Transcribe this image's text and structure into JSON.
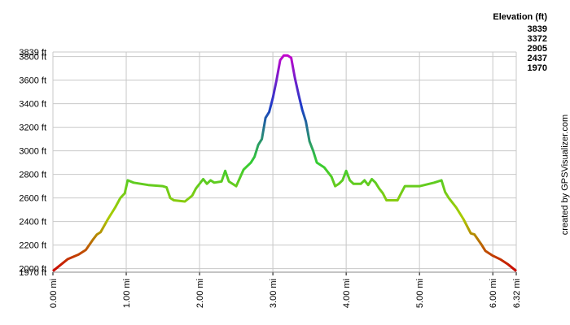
{
  "chart_data": {
    "type": "line",
    "credit": "created by GPSVisualizer.com",
    "legend_title": "Elevation (ft)",
    "color_scale": [
      {
        "value": 3839,
        "color": "#cc00cc"
      },
      {
        "value": 3372,
        "color": "#1a3cc8"
      },
      {
        "value": 2905,
        "color": "#33cc33"
      },
      {
        "value": 2437,
        "color": "#aacc00"
      },
      {
        "value": 1970,
        "color": "#cc0000"
      }
    ],
    "grid": true,
    "xlim": [
      0,
      6.32
    ],
    "ylim": [
      1970,
      3839
    ],
    "xticks": [
      {
        "value": 0,
        "label": "0.00 mi"
      },
      {
        "value": 1,
        "label": "1.00 mi"
      },
      {
        "value": 2,
        "label": "2.00 mi"
      },
      {
        "value": 3,
        "label": "3.00 mi"
      },
      {
        "value": 4,
        "label": "4.00 mi"
      },
      {
        "value": 5,
        "label": "5.00 mi"
      },
      {
        "value": 6,
        "label": "6.00 mi"
      },
      {
        "value": 6.32,
        "label": "6.32 mi"
      }
    ],
    "yticks": [
      {
        "value": 1970,
        "label": "1970 ft"
      },
      {
        "value": 2000,
        "label": "2000 ft"
      },
      {
        "value": 2200,
        "label": "2200 ft"
      },
      {
        "value": 2400,
        "label": "2400 ft"
      },
      {
        "value": 2600,
        "label": "2600 ft"
      },
      {
        "value": 2800,
        "label": "2800 ft"
      },
      {
        "value": 3000,
        "label": "3000 ft"
      },
      {
        "value": 3200,
        "label": "3200 ft"
      },
      {
        "value": 3400,
        "label": "3400 ft"
      },
      {
        "value": 3600,
        "label": "3600 ft"
      },
      {
        "value": 3800,
        "label": "3800 ft"
      },
      {
        "value": 3839,
        "label": "3839 ft"
      }
    ],
    "x": [
      0,
      0.1,
      0.2,
      0.35,
      0.45,
      0.55,
      0.6,
      0.65,
      0.75,
      0.85,
      0.92,
      0.98,
      1.02,
      1.1,
      1.3,
      1.5,
      1.55,
      1.6,
      1.65,
      1.8,
      1.9,
      1.95,
      2.0,
      2.05,
      2.1,
      2.15,
      2.2,
      2.3,
      2.35,
      2.4,
      2.45,
      2.5,
      2.55,
      2.6,
      2.7,
      2.75,
      2.8,
      2.85,
      2.9,
      2.95,
      3.0,
      3.05,
      3.1,
      3.15,
      3.2,
      3.25,
      3.3,
      3.35,
      3.4,
      3.45,
      3.5,
      3.55,
      3.6,
      3.7,
      3.8,
      3.85,
      3.9,
      3.95,
      4.0,
      4.05,
      4.1,
      4.2,
      4.25,
      4.3,
      4.35,
      4.4,
      4.45,
      4.5,
      4.55,
      4.7,
      4.75,
      4.8,
      5.0,
      5.2,
      5.3,
      5.35,
      5.4,
      5.5,
      5.6,
      5.7,
      5.75,
      5.85,
      5.9,
      6.0,
      6.1,
      6.2,
      6.32
    ],
    "values": [
      1980,
      2030,
      2080,
      2120,
      2160,
      2250,
      2290,
      2310,
      2420,
      2520,
      2600,
      2640,
      2750,
      2730,
      2710,
      2700,
      2690,
      2600,
      2580,
      2570,
      2620,
      2680,
      2720,
      2760,
      2720,
      2750,
      2730,
      2740,
      2830,
      2740,
      2720,
      2700,
      2770,
      2840,
      2900,
      2950,
      3050,
      3100,
      3280,
      3330,
      3450,
      3600,
      3770,
      3810,
      3810,
      3790,
      3620,
      3480,
      3350,
      3250,
      3080,
      3000,
      2900,
      2860,
      2780,
      2700,
      2720,
      2750,
      2830,
      2750,
      2720,
      2720,
      2750,
      2710,
      2760,
      2730,
      2680,
      2640,
      2580,
      2580,
      2640,
      2700,
      2700,
      2730,
      2750,
      2650,
      2600,
      2520,
      2420,
      2300,
      2290,
      2200,
      2150,
      2110,
      2080,
      2040,
      1980
    ]
  }
}
